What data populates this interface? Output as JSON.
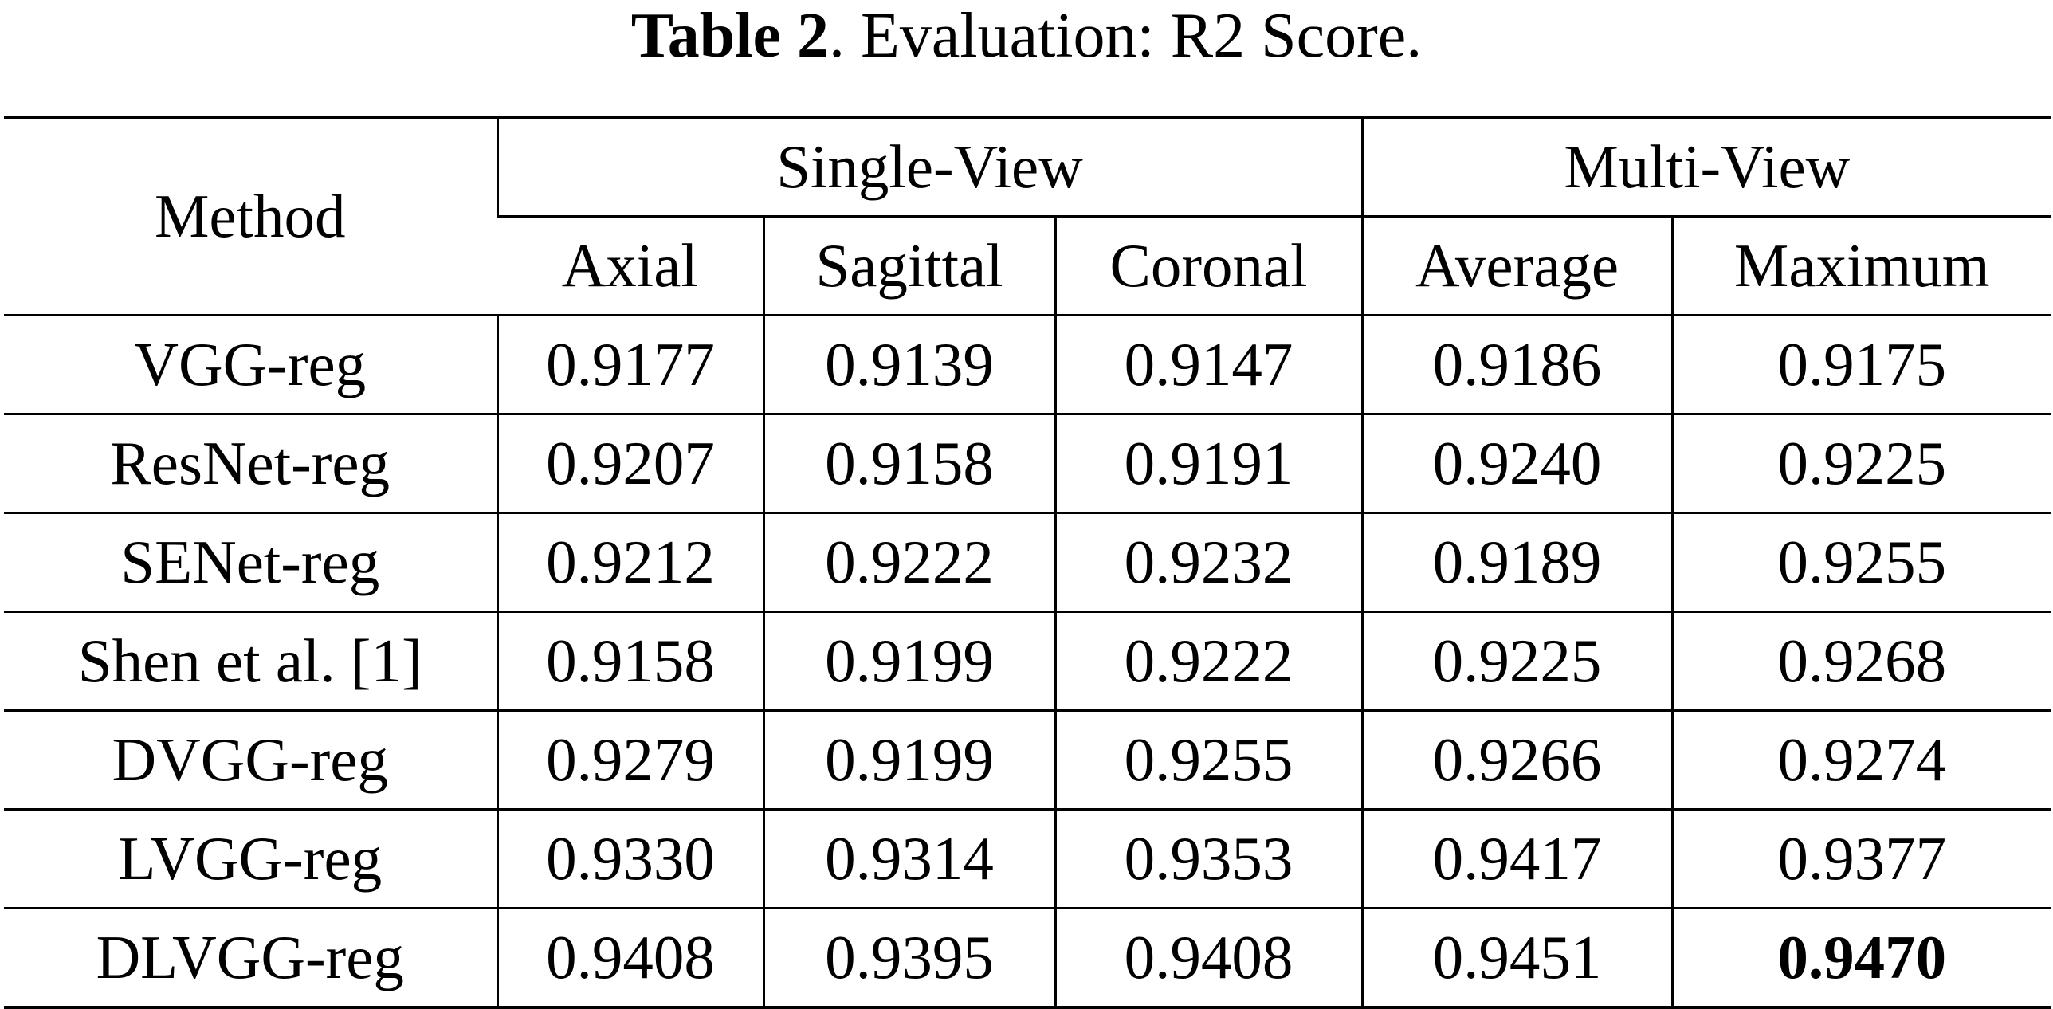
{
  "caption": {
    "label": "Table 2",
    "text": ". Evaluation: R2 Score."
  },
  "table": {
    "header": {
      "method": "Method",
      "groups": [
        "Single-View",
        "Multi-View"
      ],
      "columns": [
        "Axial",
        "Sagittal",
        "Coronal",
        "Average",
        "Maximum"
      ]
    },
    "rows": [
      [
        "VGG-reg",
        "0.9177",
        "0.9139",
        "0.9147",
        "0.9186",
        "0.9175"
      ],
      [
        "ResNet-reg",
        "0.9207",
        "0.9158",
        "0.9191",
        "0.9240",
        "0.9225"
      ],
      [
        "SENet-reg",
        "0.9212",
        "0.9222",
        "0.9232",
        "0.9189",
        "0.9255"
      ],
      [
        "Shen et al. [1]",
        "0.9158",
        "0.9199",
        "0.9222",
        "0.9225",
        "0.9268"
      ],
      [
        "DVGG-reg",
        "0.9279",
        "0.9199",
        "0.9255",
        "0.9266",
        "0.9274"
      ],
      [
        "LVGG-reg",
        "0.9330",
        "0.9314",
        "0.9353",
        "0.9417",
        "0.9377"
      ],
      [
        "DLVGG-reg",
        "0.9408",
        "0.9395",
        "0.9408",
        "0.9451",
        "0.9470"
      ]
    ]
  }
}
